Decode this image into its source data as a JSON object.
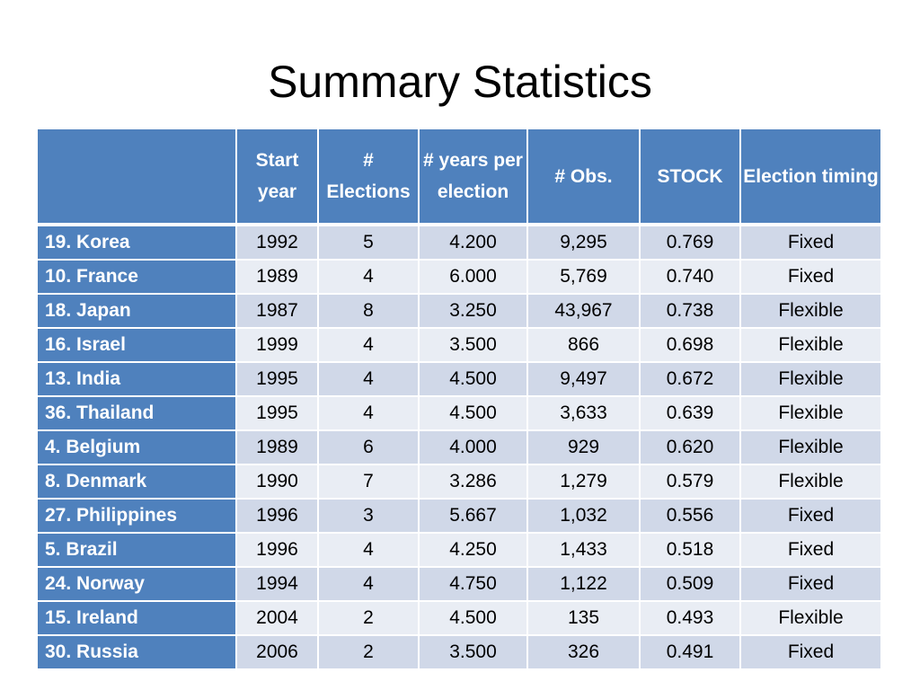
{
  "title": "Summary Statistics",
  "table": {
    "headers": {
      "country": "",
      "start_year": "Start year",
      "elections": "# Elections",
      "years_per_election": "# years per election",
      "obs": "# Obs.",
      "stock": "STOCK",
      "timing": "Election timing"
    },
    "rows": [
      {
        "country": "19. Korea",
        "start_year": "1992",
        "elections": "5",
        "years_per_election": "4.200",
        "obs": "9,295",
        "stock": "0.769",
        "timing": "Fixed"
      },
      {
        "country": "10. France",
        "start_year": "1989",
        "elections": "4",
        "years_per_election": "6.000",
        "obs": "5,769",
        "stock": "0.740",
        "timing": "Fixed"
      },
      {
        "country": "18. Japan",
        "start_year": "1987",
        "elections": "8",
        "years_per_election": "3.250",
        "obs": "43,967",
        "stock": "0.738",
        "timing": "Flexible"
      },
      {
        "country": "16. Israel",
        "start_year": "1999",
        "elections": "4",
        "years_per_election": "3.500",
        "obs": "866",
        "stock": "0.698",
        "timing": "Flexible"
      },
      {
        "country": "13. India",
        "start_year": "1995",
        "elections": "4",
        "years_per_election": "4.500",
        "obs": "9,497",
        "stock": "0.672",
        "timing": "Flexible"
      },
      {
        "country": "36. Thailand",
        "start_year": "1995",
        "elections": "4",
        "years_per_election": "4.500",
        "obs": "3,633",
        "stock": "0.639",
        "timing": "Flexible"
      },
      {
        "country": "4. Belgium",
        "start_year": "1989",
        "elections": "6",
        "years_per_election": "4.000",
        "obs": "929",
        "stock": "0.620",
        "timing": "Flexible"
      },
      {
        "country": "8. Denmark",
        "start_year": "1990",
        "elections": "7",
        "years_per_election": "3.286",
        "obs": "1,279",
        "stock": "0.579",
        "timing": "Flexible"
      },
      {
        "country": "27. Philippines",
        "start_year": "1996",
        "elections": "3",
        "years_per_election": "5.667",
        "obs": "1,032",
        "stock": "0.556",
        "timing": "Fixed"
      },
      {
        "country": "5. Brazil",
        "start_year": "1996",
        "elections": "4",
        "years_per_election": "4.250",
        "obs": "1,433",
        "stock": "0.518",
        "timing": "Fixed"
      },
      {
        "country": "24. Norway",
        "start_year": "1994",
        "elections": "4",
        "years_per_election": "4.750",
        "obs": "1,122",
        "stock": "0.509",
        "timing": "Fixed"
      },
      {
        "country": "15. Ireland",
        "start_year": "2004",
        "elections": "2",
        "years_per_election": "4.500",
        "obs": "135",
        "stock": "0.493",
        "timing": "Flexible"
      },
      {
        "country": "30. Russia",
        "start_year": "2006",
        "elections": "2",
        "years_per_election": "3.500",
        "obs": "326",
        "stock": "0.491",
        "timing": "Fixed"
      }
    ]
  },
  "colors": {
    "header_bg": "#4f81bd",
    "row_odd": "#d0d8e8",
    "row_even": "#e9edf4"
  }
}
